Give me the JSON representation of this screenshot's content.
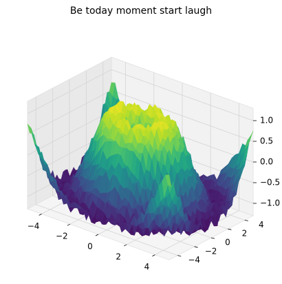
{
  "chart_data": {
    "type": "surface3d",
    "title": "Be today moment start laugh",
    "colormap": "viridis",
    "grid": true,
    "xlabel": "",
    "ylabel": "",
    "zlabel": "",
    "x_range": [
      -5,
      5
    ],
    "y_range": [
      -5,
      5
    ],
    "z_range": [
      -1.3,
      1.3
    ],
    "x_ticks": [
      -4,
      -2,
      0,
      2,
      4
    ],
    "y_ticks": [
      -4,
      -2,
      0,
      2,
      4
    ],
    "z_ticks": [
      -1.0,
      -0.5,
      0.0,
      0.5,
      1.0
    ],
    "x_tick_labels": [
      "−4",
      "−2",
      "0",
      "2",
      "4"
    ],
    "y_tick_labels": [
      "−4",
      "−2",
      "0",
      "2",
      "4"
    ],
    "z_tick_labels": [
      "−1.0",
      "−0.5",
      "0.0",
      "0.5",
      "1.0"
    ],
    "surface": {
      "function": "sin(sqrt(x^2 + y^2)) + noise",
      "noise_amplitude": 0.15,
      "resolution": 40
    }
  }
}
